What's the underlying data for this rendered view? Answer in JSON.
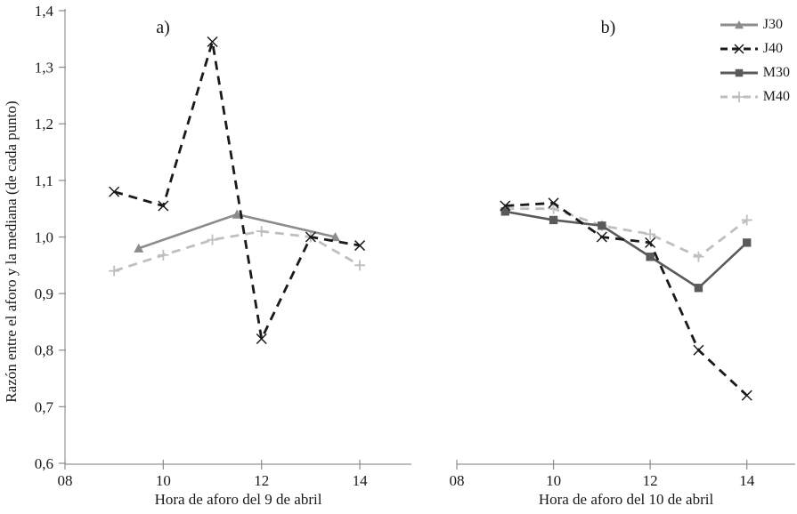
{
  "figure": {
    "background": "#ffffff",
    "axis_color": "#a6a6a6",
    "tick_color": "#8c8c8c",
    "text_color": "#1a1a1a"
  },
  "legend": {
    "position": "top-right",
    "items": [
      {
        "label": "J30",
        "color": "#8c8c8c",
        "line_style": "solid",
        "marker": "triangle"
      },
      {
        "label": "J40",
        "color": "#1a1a1a",
        "line_style": "dashed",
        "marker": "x"
      },
      {
        "label": "M30",
        "color": "#5a5a5a",
        "line_style": "solid",
        "marker": "square"
      },
      {
        "label": "M40",
        "color": "#bfbfbf",
        "line_style": "dashed",
        "marker": "plus"
      }
    ]
  },
  "chart_data": {
    "type": "line",
    "ylabel": "Razón entre el aforo y la mediana (de cada punto)",
    "ylim": [
      0.6,
      1.4
    ],
    "yticks": [
      0.6,
      0.7,
      0.8,
      0.9,
      1.0,
      1.1,
      1.2,
      1.3,
      1.4
    ],
    "ytick_labels": [
      "0,6",
      "0,7",
      "0,8",
      "0,9",
      "1,0",
      "1,1",
      "1,2",
      "1,3",
      "1,4"
    ],
    "grid": false,
    "legend_position": "top-right",
    "panels": [
      {
        "id": "a",
        "title": "a)",
        "xlabel": "Hora de aforo del 9 de abril",
        "xlim": [
          8,
          15.05
        ],
        "xticks": [
          8,
          10,
          12,
          14
        ],
        "xtick_labels": [
          "08",
          "10",
          "12",
          "14"
        ],
        "series": [
          {
            "name": "M40",
            "x": [
              9,
              10,
              11,
              12,
              13,
              14
            ],
            "y": [
              0.94,
              0.968,
              0.995,
              1.01,
              1.0,
              0.95
            ]
          },
          {
            "name": "J30",
            "x": [
              9.5,
              11.5,
              13.5
            ],
            "y": [
              0.98,
              1.04,
              1.0
            ]
          },
          {
            "name": "J40",
            "x": [
              9,
              10,
              11,
              12,
              13,
              14
            ],
            "y": [
              1.08,
              1.055,
              1.345,
              0.82,
              1.0,
              0.985
            ]
          }
        ]
      },
      {
        "id": "b",
        "title": "b)",
        "xlabel": "Hora de aforo del 10 de abril",
        "xlim": [
          8,
          15.0
        ],
        "xticks": [
          8,
          10,
          12,
          14
        ],
        "xtick_labels": [
          "08",
          "10",
          "12",
          "14"
        ],
        "series": [
          {
            "name": "M40",
            "x": [
              9,
              10,
              11,
              12,
              13,
              14
            ],
            "y": [
              1.05,
              1.05,
              1.02,
              1.005,
              0.965,
              1.03
            ]
          },
          {
            "name": "M30",
            "x": [
              9,
              10,
              11,
              12,
              13,
              14
            ],
            "y": [
              1.045,
              1.03,
              1.02,
              0.965,
              0.91,
              0.99
            ]
          },
          {
            "name": "J40",
            "x": [
              9,
              10,
              11,
              12,
              13,
              14
            ],
            "y": [
              1.055,
              1.06,
              1.0,
              0.99,
              0.8,
              0.72
            ]
          }
        ]
      }
    ]
  }
}
